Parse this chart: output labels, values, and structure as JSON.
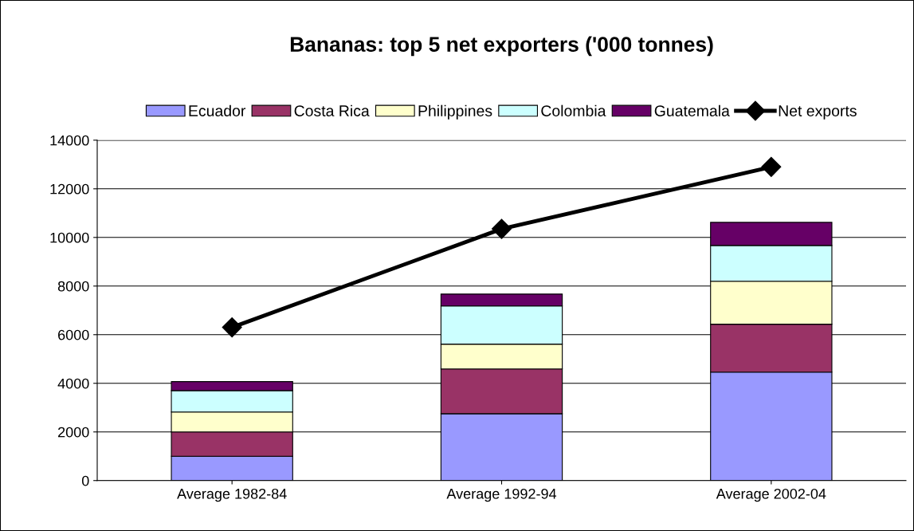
{
  "chart_data": {
    "type": "bar",
    "title": "Bananas: top 5 net exporters ('000 tonnes)",
    "categories": [
      "Average 1982-84",
      "Average 1992-94",
      "Average 2002-04"
    ],
    "stacked": true,
    "series": [
      {
        "name": "Ecuador",
        "color": "#9999ff",
        "values": [
          1000,
          2750,
          4460
        ]
      },
      {
        "name": "Costa Rica",
        "color": "#993366",
        "values": [
          1000,
          1840,
          1970
        ]
      },
      {
        "name": "Philippines",
        "color": "#ffffcc",
        "values": [
          820,
          1020,
          1770
        ]
      },
      {
        "name": "Colombia",
        "color": "#ccffff",
        "values": [
          880,
          1570,
          1470
        ]
      },
      {
        "name": "Guatemala",
        "color": "#660066",
        "values": [
          370,
          490,
          950
        ]
      },
      {
        "name": "Net exports",
        "type": "line",
        "color": "#000000",
        "marker": "diamond",
        "values": [
          6300,
          10350,
          12900
        ]
      }
    ],
    "ylim": [
      0,
      14000
    ],
    "yticks": [
      0,
      2000,
      4000,
      6000,
      8000,
      10000,
      12000,
      14000
    ],
    "grid": "y",
    "legend": "top"
  }
}
